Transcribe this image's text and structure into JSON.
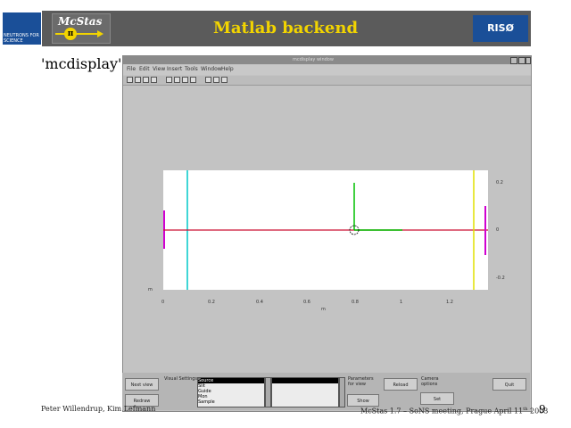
{
  "slide": {
    "title": "Matlab backend",
    "subtitle_label": "'mcdisplay'",
    "ill_logo_text": "NEUTRONS FOR SCIENCE",
    "mcstas_logo_text": "McStas",
    "mcstas_pi": "π",
    "riso_logo_text": "RISØ",
    "footer_left": "Peter Willendrup, Kim Lefmann",
    "footer_right": "McStas 1.7 – SoNS meeting, Prague April 11",
    "footer_right_sup": "th",
    "footer_right_year": " 2003",
    "page_number": "9"
  },
  "window": {
    "title": "mcdisplay window",
    "menu": [
      "File",
      "Edit",
      "View",
      "Insert",
      "Tools",
      "Window",
      "Help"
    ],
    "toolbar_icons": [
      "new-icon",
      "open-icon",
      "save-icon",
      "print-icon",
      "pointer-icon",
      "text-icon",
      "arrow-icon",
      "line-icon",
      "rotate-icon",
      "zoom-icon",
      "help-icon"
    ]
  },
  "plot": {
    "x_ticks": [
      "0",
      "0.2",
      "0.4",
      "0.6",
      "0.8",
      "1",
      "1.2"
    ],
    "y_ticks_right": [
      "0.2",
      "0",
      "-0.2"
    ],
    "xlabel": "m",
    "ylabel": "m"
  },
  "controls": {
    "buttons_left": [
      "Next view",
      "Redraw"
    ],
    "list_label": "Visual Settings",
    "list_items": [
      "Source",
      "Slit",
      "Guide",
      "Mon",
      "Sample"
    ],
    "list2_items": [
      ""
    ],
    "parameters_label": "Parameters for view",
    "parameters_btn": "Show",
    "reload_btn": "Reload",
    "camera_label": "Camera options",
    "camera_btn": "Set",
    "quit_btn": "Quit"
  },
  "colors": {
    "beam": "#cc1133",
    "left_component": "#d000d0",
    "slit": "#00c8c8",
    "detector": "#e0e000",
    "sample_arm": "#00c000"
  }
}
